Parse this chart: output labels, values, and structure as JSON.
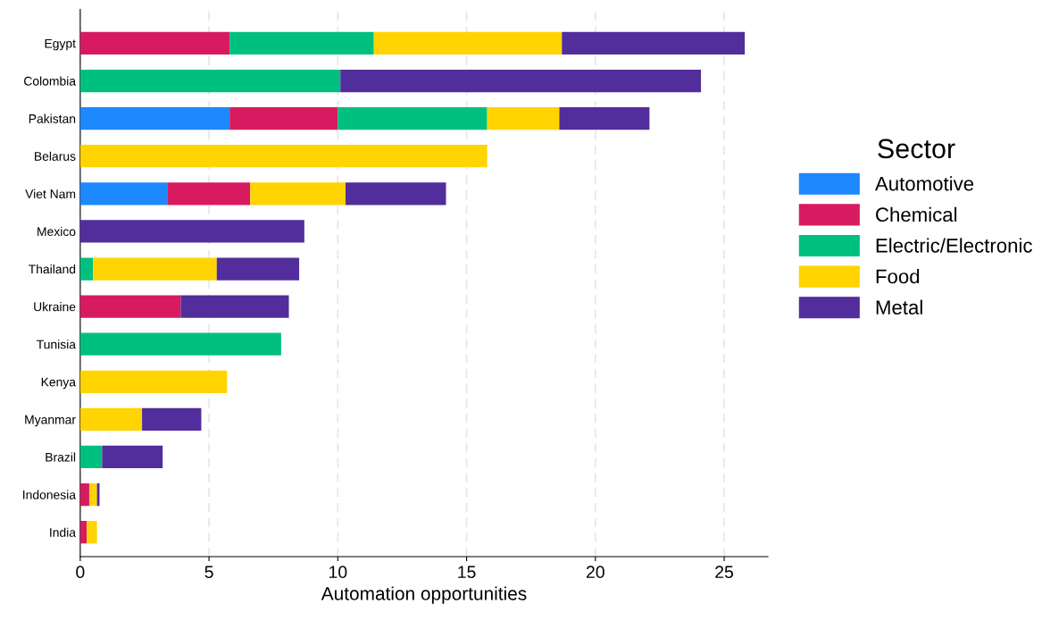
{
  "chart_data": {
    "type": "bar",
    "orientation": "horizontal",
    "stacked": true,
    "xlabel": "Automation opportunities",
    "legend_title": "Sector",
    "legend": "right",
    "grid": "x",
    "categories": [
      "Egypt",
      "Colombia",
      "Pakistan",
      "Belarus",
      "Viet Nam",
      "Mexico",
      "Thailand",
      "Ukraine",
      "Tunisia",
      "Kenya",
      "Myanmar",
      "Brazil",
      "Indonesia",
      "India"
    ],
    "xlim": [
      0,
      26.7
    ],
    "xticks": [
      0,
      5,
      10,
      15,
      20,
      25
    ],
    "series": [
      {
        "name": "Automotive",
        "color": "#1e88ff",
        "values": [
          null,
          null,
          5.8,
          null,
          3.4,
          null,
          null,
          null,
          null,
          null,
          null,
          null,
          null,
          null
        ]
      },
      {
        "name": "Chemical",
        "color": "#d81b60",
        "values": [
          5.8,
          null,
          4.2,
          null,
          3.2,
          null,
          null,
          3.9,
          null,
          null,
          null,
          null,
          0.35,
          0.25
        ]
      },
      {
        "name": "Electric/Electronic",
        "color": "#00c07f",
        "values": [
          5.6,
          10.1,
          5.8,
          null,
          null,
          null,
          0.5,
          null,
          7.8,
          null,
          null,
          0.85,
          null,
          null
        ]
      },
      {
        "name": "Food",
        "color": "#ffd400",
        "values": [
          7.3,
          null,
          2.8,
          15.8,
          3.7,
          null,
          4.8,
          null,
          null,
          5.7,
          2.4,
          null,
          0.3,
          0.4
        ]
      },
      {
        "name": "Metal",
        "color": "#522d9c",
        "values": [
          7.1,
          14.0,
          3.5,
          null,
          3.9,
          8.7,
          3.2,
          4.2,
          null,
          null,
          2.3,
          2.35,
          0.1,
          null
        ]
      }
    ]
  }
}
